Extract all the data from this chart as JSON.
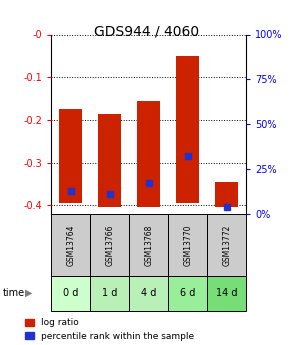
{
  "title": "GDS944 / 4060",
  "samples": [
    "GSM13764",
    "GSM13766",
    "GSM13768",
    "GSM13770",
    "GSM13772"
  ],
  "time_labels": [
    "0 d",
    "1 d",
    "4 d",
    "6 d",
    "14 d"
  ],
  "log_ratio_bottom": [
    -0.395,
    -0.405,
    -0.405,
    -0.395,
    -0.405
  ],
  "log_ratio_top": [
    -0.175,
    -0.185,
    -0.155,
    -0.05,
    -0.345
  ],
  "percentile_rank": [
    13,
    11,
    17,
    32,
    4
  ],
  "ylim": [
    -0.42,
    0.0
  ],
  "yticks": [
    0.0,
    -0.1,
    -0.2,
    -0.3,
    -0.4
  ],
  "right_yticks": [
    0,
    25,
    50,
    75,
    100
  ],
  "bar_color": "#cc2200",
  "percentile_color": "#2233cc",
  "title_fontsize": 10,
  "bar_width": 0.6,
  "sample_bg_color": "#cccccc",
  "time_bg_colors": [
    "#ccffcc",
    "#b8f0b8",
    "#b8f0b8",
    "#99ee99",
    "#77dd77"
  ],
  "legend_items": [
    "log ratio",
    "percentile rank within the sample"
  ],
  "right_ylim": [
    0,
    100
  ]
}
